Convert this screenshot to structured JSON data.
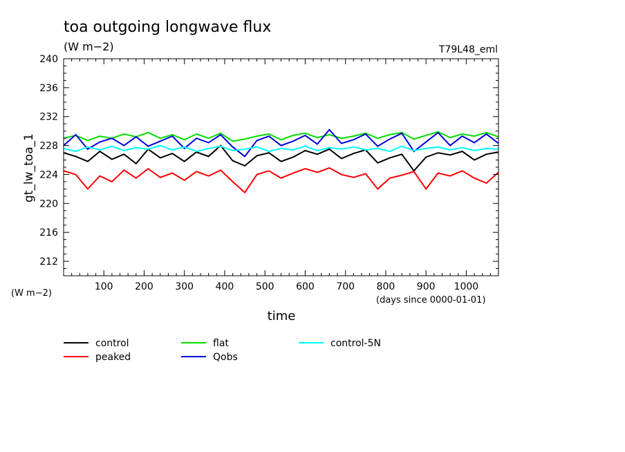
{
  "chart_data": {
    "type": "line",
    "title": "toa outgoing longwave flux",
    "subtitle": "(W m−2)",
    "run_label": "T79L48_eml",
    "xlabel": "time",
    "x_units": "(days since 0000-01-01)",
    "ylabel": "gt_lw_toa_1",
    "y_units": "(W m−2)",
    "xlim": [
      0,
      1080
    ],
    "ylim": [
      210,
      240
    ],
    "x_ticks": [
      100,
      200,
      300,
      400,
      500,
      600,
      700,
      800,
      900,
      1000
    ],
    "y_ticks": [
      212,
      216,
      220,
      224,
      228,
      232,
      236,
      240
    ],
    "grid": false,
    "legend_position": "bottom",
    "x": [
      0,
      30,
      60,
      90,
      120,
      150,
      180,
      210,
      240,
      270,
      300,
      330,
      360,
      390,
      420,
      450,
      480,
      510,
      540,
      570,
      600,
      630,
      660,
      690,
      720,
      750,
      780,
      810,
      840,
      870,
      900,
      930,
      960,
      990,
      1020,
      1050,
      1080
    ],
    "series": [
      {
        "name": "control",
        "color": "#000000",
        "values": [
          227.0,
          226.5,
          225.8,
          227.2,
          226.1,
          226.8,
          225.5,
          227.5,
          226.3,
          226.9,
          225.8,
          227.1,
          226.5,
          228.0,
          225.9,
          225.2,
          226.6,
          227.0,
          225.8,
          226.4,
          227.3,
          226.8,
          227.5,
          226.2,
          226.9,
          227.4,
          225.6,
          226.3,
          226.8,
          224.5,
          226.4,
          227.0,
          226.7,
          227.2,
          226.0,
          226.8,
          227.1
        ]
      },
      {
        "name": "peaked",
        "color": "#ff0000",
        "values": [
          224.5,
          224.0,
          222.0,
          223.8,
          223.0,
          224.6,
          223.5,
          224.8,
          223.6,
          224.2,
          223.2,
          224.4,
          223.8,
          224.6,
          223.0,
          221.5,
          224.0,
          224.5,
          223.5,
          224.2,
          224.8,
          224.3,
          224.9,
          224.0,
          223.6,
          224.1,
          222.0,
          223.5,
          223.9,
          224.4,
          222.0,
          224.2,
          223.8,
          224.5,
          223.5,
          222.8,
          224.3
        ]
      },
      {
        "name": "flat",
        "color": "#00dd00",
        "values": [
          229.0,
          229.4,
          228.7,
          229.3,
          229.0,
          229.6,
          229.2,
          229.8,
          229.0,
          229.5,
          228.8,
          229.6,
          229.0,
          229.7,
          228.6,
          228.9,
          229.3,
          229.6,
          228.8,
          229.4,
          229.7,
          229.1,
          229.5,
          229.0,
          229.3,
          229.7,
          229.0,
          229.5,
          229.8,
          228.9,
          229.4,
          229.9,
          229.1,
          229.6,
          229.3,
          229.8,
          229.2
        ]
      },
      {
        "name": "Qobs",
        "color": "#0000dd",
        "values": [
          228.0,
          229.5,
          227.5,
          228.5,
          229.0,
          228.0,
          229.2,
          227.9,
          228.6,
          229.3,
          227.6,
          229.0,
          228.4,
          229.5,
          227.8,
          226.5,
          228.7,
          229.3,
          228.0,
          228.6,
          229.4,
          228.2,
          230.2,
          228.3,
          228.8,
          229.6,
          227.9,
          228.9,
          229.7,
          227.2,
          228.5,
          229.8,
          228.0,
          229.3,
          228.4,
          229.6,
          228.3
        ]
      },
      {
        "name": "control-5N",
        "color": "#00ffff",
        "values": [
          227.6,
          227.2,
          227.8,
          227.4,
          227.9,
          227.3,
          227.7,
          227.5,
          228.0,
          227.4,
          227.8,
          227.2,
          227.6,
          227.9,
          227.3,
          227.5,
          227.8,
          227.2,
          227.6,
          227.4,
          227.9,
          227.3,
          227.7,
          227.5,
          227.8,
          227.4,
          227.6,
          227.2,
          227.9,
          227.3,
          227.6,
          227.8,
          227.4,
          227.7,
          227.3,
          227.6,
          227.5
        ]
      }
    ]
  }
}
